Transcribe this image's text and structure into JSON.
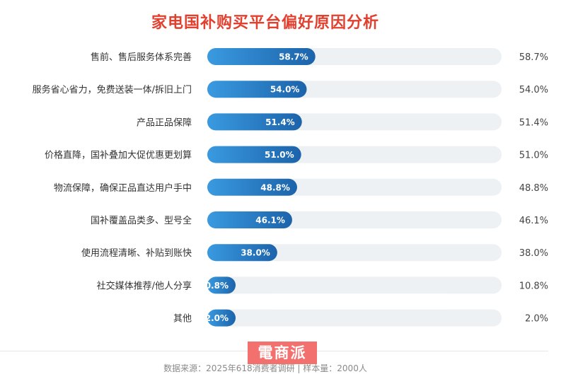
{
  "title": "家电国补购买平台偏好原因分析",
  "logo": "電商派",
  "source": "数据来源：2025年618消费者调研 | 样本量：2000人",
  "colors": {
    "title": "#e2402f",
    "bar_start": "#3a9ae0",
    "bar_end": "#1c63aa",
    "track": "#eef1f4"
  },
  "chart_data": {
    "type": "bar",
    "orientation": "horizontal",
    "title": "家电国补购买平台偏好原因分析",
    "categories": [
      "售前、售后服务体系完善",
      "服务省心省力，免费送装一体/拆旧上门",
      "产品正品保障",
      "价格直降，国补叠加大促优惠更划算",
      "物流保障，确保正品直达用户手中",
      "国补覆盖品类多、型号全",
      "使用流程清晰、补贴到账快",
      "社交媒体推荐/他人分享",
      "其他"
    ],
    "values": [
      58.7,
      54.0,
      51.4,
      51.0,
      48.8,
      46.1,
      38.0,
      10.8,
      2.0
    ],
    "labels": [
      "58.7%",
      "54.0%",
      "51.4%",
      "51.0%",
      "48.8%",
      "46.1%",
      "38.0%",
      "10.8%",
      "2.0%"
    ],
    "xlim": [
      0,
      100
    ],
    "grid": false,
    "legend": "none"
  }
}
